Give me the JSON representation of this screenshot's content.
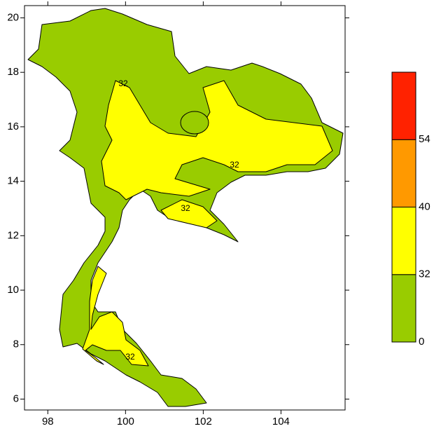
{
  "chart_data": {
    "type": "map",
    "xlim": [
      97.4,
      105.65
    ],
    "ylim": [
      5.6,
      20.45
    ],
    "xticks": [
      98,
      100,
      102,
      104
    ],
    "yticks": [
      6,
      8,
      10,
      12,
      14,
      16,
      18,
      20
    ],
    "land_color": "#99cc00",
    "band_color": "#ffff00",
    "contour_labels": [
      32,
      32,
      32,
      32
    ],
    "colorbar": {
      "boundaries": [
        0,
        32,
        40,
        54,
        null
      ],
      "colors": [
        "#99cc00",
        "#ffff00",
        "#ff9900",
        "#ff2200"
      ]
    }
  }
}
